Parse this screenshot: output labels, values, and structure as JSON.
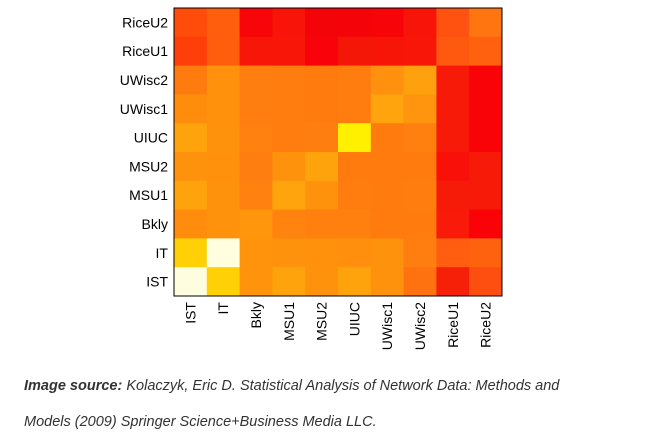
{
  "chart_data": {
    "type": "heatmap",
    "title": "",
    "xlabel": "",
    "ylabel": "",
    "x_labels": [
      "IST",
      "IT",
      "Bkly",
      "MSU1",
      "MSU2",
      "UIUC",
      "UWisc1",
      "UWisc2",
      "RiceU1",
      "RiceU2"
    ],
    "y_labels_top_to_bottom": [
      "RiceU2",
      "RiceU1",
      "UWisc2",
      "UWisc1",
      "UIUC",
      "MSU2",
      "MSU1",
      "Bkly",
      "IT",
      "IST"
    ],
    "colors": [
      [
        "#ff4c0a",
        "#ff5e0c",
        "#f70509",
        "#f81408",
        "#f30408",
        "#f40408",
        "#f60408",
        "#f81409",
        "#ff5210",
        "#ff750f"
      ],
      [
        "#ff3f0a",
        "#ff5e0d",
        "#f81609",
        "#f81609",
        "#f70309",
        "#f41707",
        "#f71507",
        "#f81609",
        "#ff5910",
        "#ff610f"
      ],
      [
        "#ff7a0f",
        "#ff910c",
        "#ff7e0f",
        "#ff7d0f",
        "#ff7b0e",
        "#ff7d0f",
        "#ff910f",
        "#ffa00e",
        "#f81a09",
        "#f90309"
      ],
      [
        "#ff8d0c",
        "#ff910c",
        "#ff7e0f",
        "#ff7d0f",
        "#ff7b0e",
        "#ff7d0f",
        "#ffa40c",
        "#ff940f",
        "#f81a09",
        "#f90309"
      ],
      [
        "#ffa30c",
        "#ff920c",
        "#ff810f",
        "#ff7d0f",
        "#ff7e0f",
        "#fff000",
        "#ff7b0e",
        "#ff800f",
        "#f71a09",
        "#f90309"
      ],
      [
        "#ff920c",
        "#ff910c",
        "#ff7e0f",
        "#ff920c",
        "#ffa30c",
        "#ff7b0e",
        "#ff7b0e",
        "#ff7b0e",
        "#f91009",
        "#f71a09"
      ],
      [
        "#ffa30c",
        "#ff920c",
        "#ff810f",
        "#ffa40c",
        "#ff920c",
        "#ff7d0f",
        "#ff7b0e",
        "#ff7d0f",
        "#f61a09",
        "#f71a09"
      ],
      [
        "#ff8c0c",
        "#ff920c",
        "#ff960c",
        "#ff830f",
        "#ff800f",
        "#ff800f",
        "#ff7b0e",
        "#ff7b0e",
        "#f91a09",
        "#f90309"
      ],
      [
        "#ffd006",
        "#ffffe0",
        "#ff930c",
        "#ff920c",
        "#ff910c",
        "#ff8f0c",
        "#ff920c",
        "#ff7e0f",
        "#ff5e10",
        "#ff620f"
      ],
      [
        "#fffde0",
        "#ffd006",
        "#ff930c",
        "#ffa30c",
        "#ff920c",
        "#ffa30c",
        "#ff920c",
        "#ff720f",
        "#f62009",
        "#ff4f10"
      ]
    ]
  },
  "caption": {
    "source_label": "Image source:",
    "source_text": " Kolaczyk, Eric D. Statistical Analysis of Network Data: Methods and",
    "line2": "Models (2009) Springer Science+Business Media LLC."
  }
}
